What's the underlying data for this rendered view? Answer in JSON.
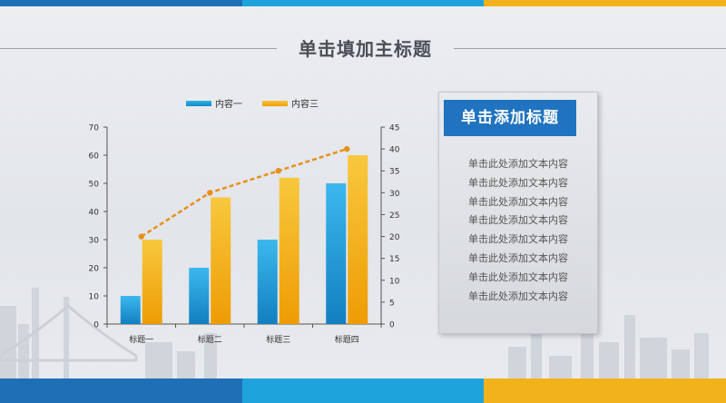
{
  "slide": {
    "title": "单击填加主标题",
    "band_colors": [
      "#1f6fb7",
      "#1fa3dc",
      "#f1b21b"
    ]
  },
  "panel": {
    "heading": "单击添加标题",
    "lines": [
      "单击此处添加文本内容",
      "单击此处添加文本内容",
      "单击此处添加文本内容",
      "单击此处添加文本内容",
      "单击此处添加文本内容",
      "单击此处添加文本内容",
      "单击此处添加文本内容",
      "单击此处添加文本内容"
    ],
    "heading_color": "#1f73bf"
  },
  "chart_data": {
    "type": "bar",
    "categories": [
      "标题一",
      "标题二",
      "标题三",
      "标题四"
    ],
    "series": [
      {
        "name": "内容一",
        "values": [
          10,
          20,
          30,
          50
        ],
        "color": "#1a9ad8",
        "axis": "left"
      },
      {
        "name": "内容三",
        "values": [
          30,
          45,
          52,
          60
        ],
        "color": "#f2ac10",
        "axis": "left"
      },
      {
        "values": [
          20,
          30,
          35,
          40
        ],
        "color": "#e8901a",
        "axis": "right",
        "style": "dashed-line-with-markers"
      }
    ],
    "ylim": [
      0,
      70
    ],
    "yticks": [
      0,
      10,
      20,
      30,
      40,
      50,
      60,
      70
    ],
    "y2lim": [
      0,
      45
    ],
    "y2ticks": [
      0,
      5,
      10,
      15,
      20,
      25,
      30,
      35,
      40,
      45
    ],
    "legend": "top",
    "grid": false,
    "title": "",
    "xlabel": "",
    "ylabel": ""
  }
}
